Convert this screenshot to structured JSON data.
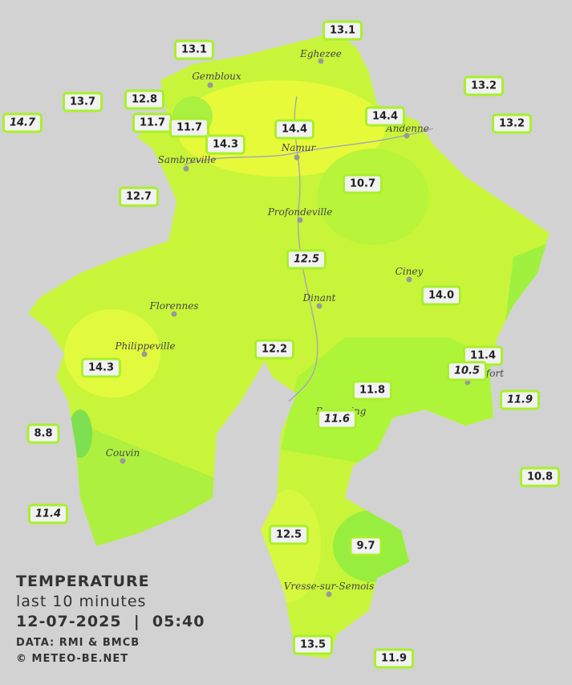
{
  "legend": {
    "title": "TEMPERATURE",
    "subtitle": "last 10 minutes",
    "datetime": "12-07-2025  |  05:40",
    "source": "DATA: RMI & BMCB",
    "credit": "© METEO-BE.NET"
  },
  "cities": [
    "Eghezee",
    "Gembloux",
    "Andenne",
    "Namur",
    "Sambreville",
    "Profondeville",
    "Ciney",
    "Dinant",
    "Florennes",
    "Philippeville",
    "Rochefort",
    "Beauraing",
    "Couvin",
    "Vresse-sur-Semois"
  ],
  "stations": [
    "13.1",
    "13.1",
    "13.2",
    "13.7",
    "12.8",
    "14.7",
    "11.7",
    "11.7",
    "14.4",
    "13.2",
    "14.4",
    "14.3",
    "10.7",
    "12.7",
    "12.5",
    "14.0",
    "12.2",
    "11.4",
    "14.3",
    "10.5",
    "11.8",
    "11.9",
    "11.6",
    "8.8",
    "10.8",
    "11.4",
    "12.5",
    "9.7",
    "13.5",
    "11.9"
  ]
}
